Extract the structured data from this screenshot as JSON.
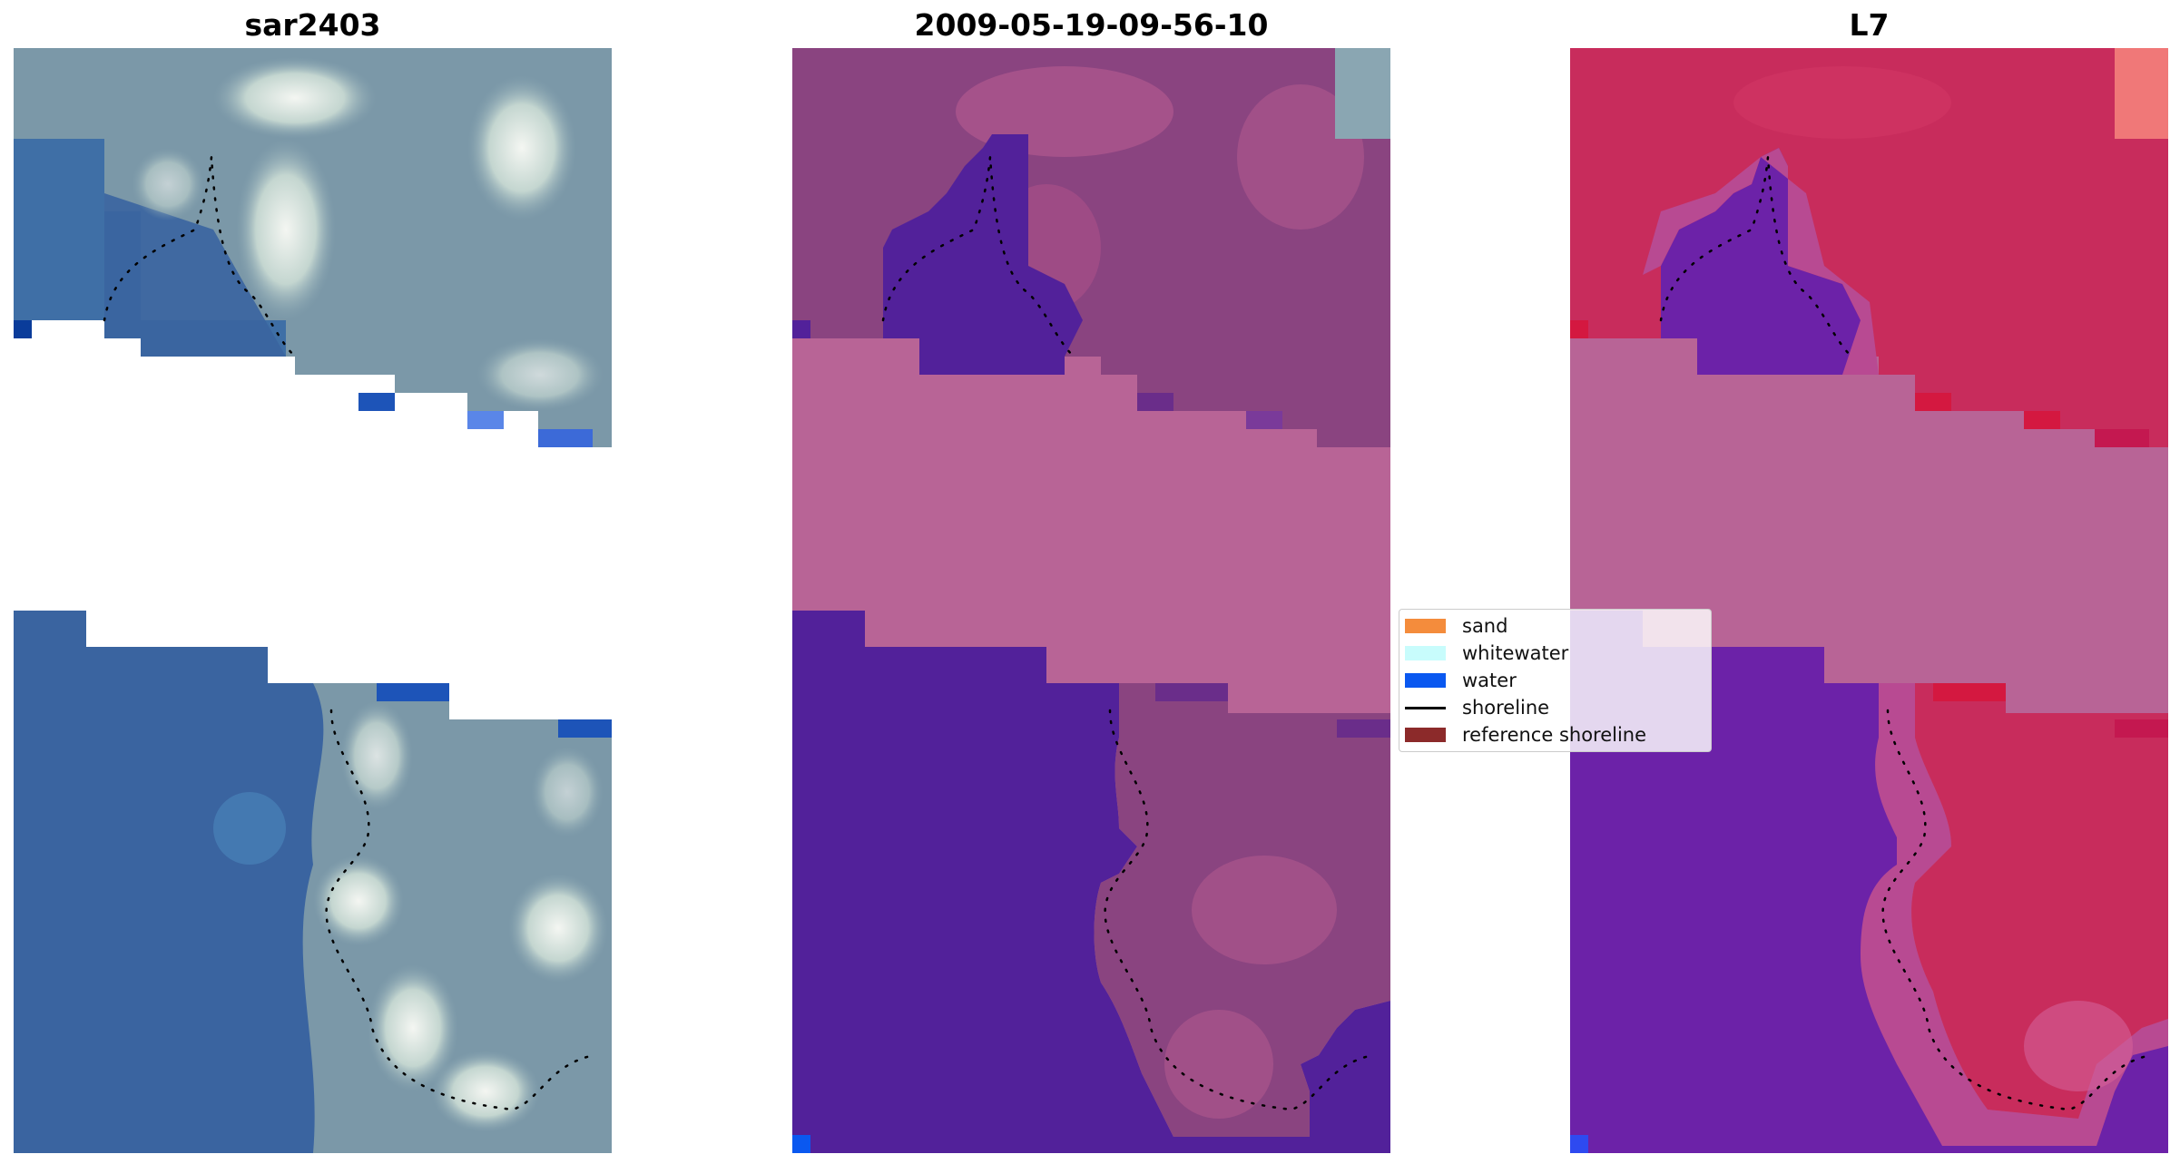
{
  "panels": [
    {
      "title": "sar2403"
    },
    {
      "title": "2009-05-19-09-56-10"
    },
    {
      "title": "L7"
    }
  ],
  "legend": {
    "items": [
      {
        "label": "sand",
        "color": "#f48c3c",
        "kind": "patch"
      },
      {
        "label": "whitewater",
        "color": "#c8fcfc",
        "kind": "patch"
      },
      {
        "label": "water",
        "color": "#0a58f0",
        "kind": "patch"
      },
      {
        "label": "shoreline",
        "color": "#000000",
        "kind": "line"
      },
      {
        "label": "reference shoreline",
        "color": "#8c2a2a",
        "kind": "patch"
      }
    ]
  },
  "colors": {
    "rgb_water": "#3a64a0",
    "rgb_land": "#7b98a8",
    "rgb_white": "#e8eeec",
    "class_water": "#52219a",
    "class_land": "#8a4480",
    "class_cloudmask": "#b86496",
    "mndwi_water": "#6c22a8",
    "mndwi_land": "#c82c5c",
    "mndwi_mask": "#b86496"
  }
}
